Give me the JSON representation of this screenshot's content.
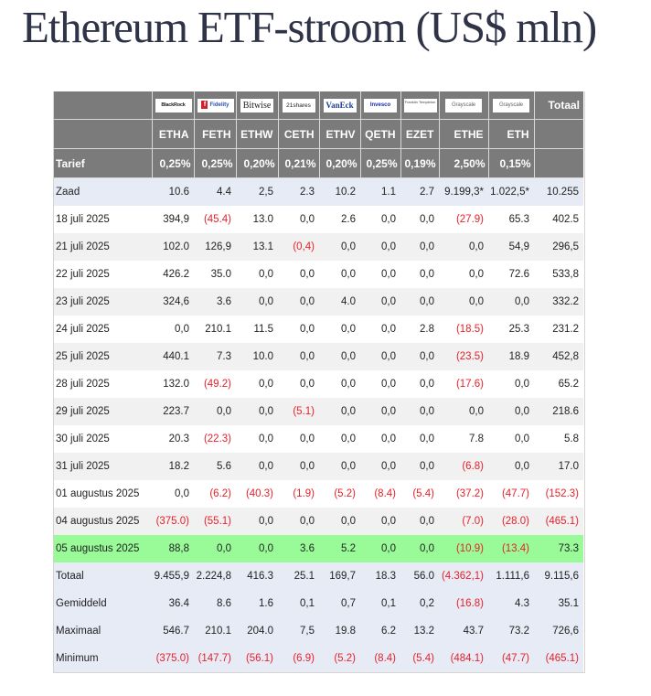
{
  "title": "Ethereum ETF-stroom (US$ mln)",
  "table": {
    "issuers": [
      {
        "logo": "BlackRock",
        "ticker": "ETHA",
        "fee": "0,25%"
      },
      {
        "logo": "Fidelity",
        "ticker": "FETH",
        "fee": "0,25%"
      },
      {
        "logo": "Bitwise",
        "ticker": "ETHW",
        "fee": "0,20%"
      },
      {
        "logo": "21shares",
        "ticker": "CETH",
        "fee": "0,21%"
      },
      {
        "logo": "VanEck",
        "ticker": "ETHV",
        "fee": "0,20%"
      },
      {
        "logo": "Invesco",
        "ticker": "QETH",
        "fee": "0,25%"
      },
      {
        "logo": "Franklin Templeton",
        "ticker": "EZET",
        "fee": "0,19%"
      },
      {
        "logo": "Grayscale",
        "ticker": "ETHE",
        "fee": "2,50%"
      },
      {
        "logo": "Grayscale",
        "ticker": "ETH",
        "fee": "0,15%"
      }
    ],
    "total_header": "Totaal",
    "fee_label": "Tarief",
    "rows": [
      {
        "label": "Zaad",
        "type": "zaad",
        "values": [
          "10.6",
          "4.4",
          "2,5",
          "2.3",
          "10.2",
          "1.1",
          "2.7",
          "9.199,3*",
          "1.022,5*",
          "10.255"
        ]
      },
      {
        "label": "18 juli 2025",
        "type": "odd",
        "values": [
          "394,9",
          "(45.4)",
          "13.0",
          "0,0",
          "2.6",
          "0,0",
          "0,0",
          "(27.9)",
          "65.3",
          "402.5"
        ]
      },
      {
        "label": "21 juli 2025",
        "type": "even",
        "values": [
          "102.0",
          "126,9",
          "13.1",
          "(0,4)",
          "0,0",
          "0,0",
          "0,0",
          "0,0",
          "54,9",
          "296,5"
        ]
      },
      {
        "label": "22 juli 2025",
        "type": "odd",
        "values": [
          "426.2",
          "35.0",
          "0,0",
          "0,0",
          "0,0",
          "0,0",
          "0,0",
          "0,0",
          "72.6",
          "533,8"
        ]
      },
      {
        "label": "23 juli 2025",
        "type": "even",
        "values": [
          "324,6",
          "3.6",
          "0,0",
          "0,0",
          "4.0",
          "0,0",
          "0,0",
          "0,0",
          "0,0",
          "332.2"
        ]
      },
      {
        "label": "24 juli 2025",
        "type": "odd",
        "values": [
          "0,0",
          "210.1",
          "11.5",
          "0,0",
          "0,0",
          "0,0",
          "2.8",
          "(18.5)",
          "25.3",
          "231.2"
        ]
      },
      {
        "label": "25 juli 2025",
        "type": "even",
        "values": [
          "440.1",
          "7.3",
          "10.0",
          "0,0",
          "0,0",
          "0,0",
          "0,0",
          "(23.5)",
          "18.9",
          "452,8"
        ]
      },
      {
        "label": "28 juli 2025",
        "type": "odd",
        "values": [
          "132.0",
          "(49.2)",
          "0,0",
          "0,0",
          "0,0",
          "0,0",
          "0,0",
          "(17.6)",
          "0,0",
          "65.2"
        ]
      },
      {
        "label": "29 juli 2025",
        "type": "even",
        "values": [
          "223.7",
          "0,0",
          "0,0",
          "(5.1)",
          "0,0",
          "0,0",
          "0,0",
          "0,0",
          "0,0",
          "218.6"
        ]
      },
      {
        "label": "30 juli 2025",
        "type": "odd",
        "values": [
          "20.3",
          "(22.3)",
          "0,0",
          "0,0",
          "0,0",
          "0,0",
          "0,0",
          "7.8",
          "0,0",
          "5.8"
        ]
      },
      {
        "label": "31 juli 2025",
        "type": "even",
        "values": [
          "18.2",
          "5.6",
          "0,0",
          "0,0",
          "0,0",
          "0,0",
          "0,0",
          "(6.8)",
          "0,0",
          "17.0"
        ]
      },
      {
        "label": "01 augustus 2025",
        "type": "odd",
        "values": [
          "0,0",
          "(6.2)",
          "(40.3)",
          "(1.9)",
          "(5.2)",
          "(8.4)",
          "(5.4)",
          "(37.2)",
          "(47.7)",
          "(152.3)"
        ]
      },
      {
        "label": "04 augustus 2025",
        "type": "even",
        "values": [
          "(375.0)",
          "(55.1)",
          "0,0",
          "0,0",
          "0,0",
          "0,0",
          "0,0",
          "(7.0)",
          "(28.0)",
          "(465.1)"
        ]
      },
      {
        "label": "05 augustus 2025",
        "type": "highlight",
        "values": [
          "88,8",
          "0,0",
          "0,0",
          "3.6",
          "5.2",
          "0,0",
          "0,0",
          "(10.9)",
          "(13.4)",
          "73.3"
        ]
      },
      {
        "label": "Totaal",
        "type": "summary",
        "values": [
          "9.455,9",
          "2.224,8",
          "416.3",
          "25.1",
          "169,7",
          "18.3",
          "56.0",
          "(4.362,1)",
          "1.111,6",
          "9.115,6"
        ]
      },
      {
        "label": "Gemiddeld",
        "type": "summary",
        "values": [
          "36.4",
          "8.6",
          "1.6",
          "0,1",
          "0,7",
          "0,1",
          "0,2",
          "(16.8)",
          "4.3",
          "35.1"
        ]
      },
      {
        "label": "Maximaal",
        "type": "summary",
        "values": [
          "546.7",
          "210.1",
          "204.0",
          "7,5",
          "19.8",
          "6.2",
          "13.2",
          "43.7",
          "73.2",
          "726,6"
        ]
      },
      {
        "label": "Minimum",
        "type": "summary",
        "values": [
          "(375.0)",
          "(147.7)",
          "(56.1)",
          "(6.9)",
          "(5.2)",
          "(8.4)",
          "(5.4)",
          "(484.1)",
          "(47.7)",
          "(465.1)"
        ]
      }
    ]
  },
  "colors": {
    "header_bg": "#7b7b7b",
    "negative": "#e8202a",
    "highlight_row": "#98fb98",
    "summary_row": "#e7ebf6",
    "title": "#2e3347"
  }
}
